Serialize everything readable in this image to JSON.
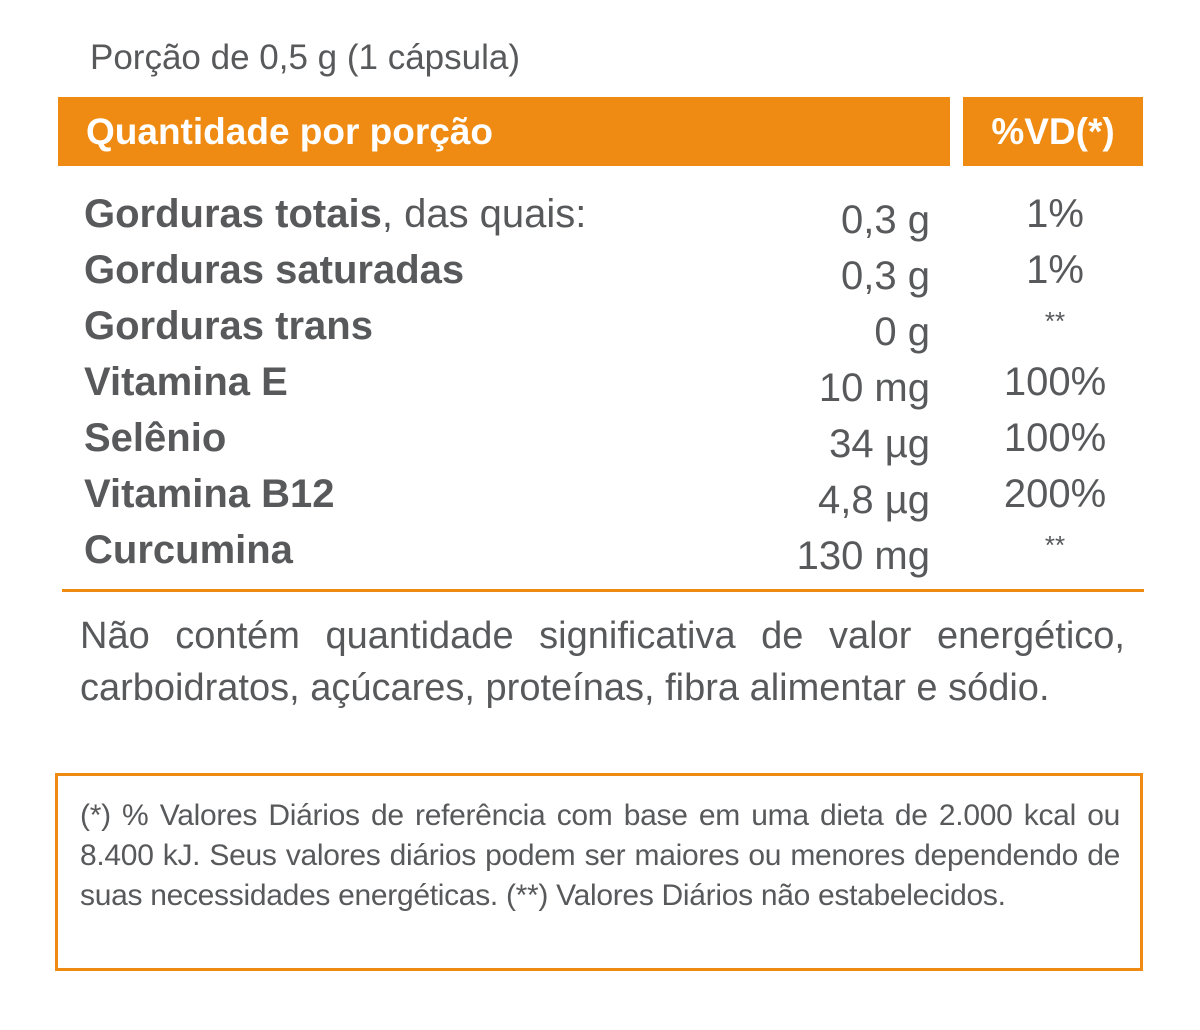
{
  "portion": "Porção de 0,5 g (1 cápsula)",
  "header": {
    "quantity_label": "Quantidade por porção",
    "dv_label": "%VD(*)"
  },
  "rows": [
    {
      "name": "Gorduras totais",
      "suffix": ", das quais:",
      "amount": "0,3 g",
      "dv": "1%"
    },
    {
      "name": "Gorduras saturadas",
      "suffix": "",
      "amount": "0,3 g",
      "dv": "1%"
    },
    {
      "name": "Gorduras trans",
      "suffix": "",
      "amount": "0 g",
      "dv": "**"
    },
    {
      "name": "Vitamina E",
      "suffix": "",
      "amount": "10 mg",
      "dv": "100%"
    },
    {
      "name": "Selênio",
      "suffix": "",
      "amount": "34 µg",
      "dv": "100%"
    },
    {
      "name": "Vitamina B12",
      "suffix": "",
      "amount": "4,8 µg",
      "dv": "200%"
    },
    {
      "name": "Curcumina",
      "suffix": "",
      "amount": "130 mg",
      "dv": "**"
    }
  ],
  "note": "Não contém quantidade significativa de valor energético, carboidratos, açúcares, proteínas, fibra alimentar e sódio.",
  "footnote": "(*) % Valores Diários de referência com base em uma dieta de 2.000 kcal ou 8.400 kJ. Seus valores diários podem ser maiores ou menores dependendo de suas necessidades energéticas. (**) Valores Diários não estabelecidos.",
  "colors": {
    "accent": "#ef8b12",
    "text": "#58595b"
  }
}
